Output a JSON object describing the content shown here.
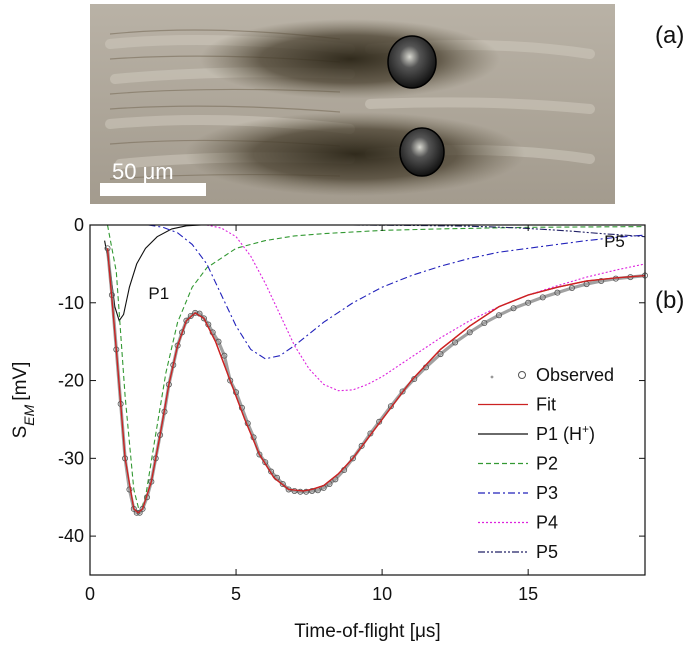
{
  "panels": {
    "top_label": "(a)",
    "bottom_label": "(b)"
  },
  "micrograph": {
    "scale_bar_label": "50 μm"
  },
  "chart_data": {
    "type": "line",
    "xlabel": "Time-of-flight [μs]",
    "ylabel_main": "S",
    "ylabel_sub": "EM",
    "ylabel_unit": "[mV]",
    "xlim": [
      0,
      19
    ],
    "ylim": [
      -45,
      0
    ],
    "xticks": [
      0,
      5,
      10,
      15
    ],
    "yticks": [
      0,
      -10,
      -20,
      -30,
      -40
    ],
    "ytick_labels": [
      "0",
      "-10",
      "-20",
      "-30",
      "-40"
    ],
    "annotations": [
      {
        "text": "P1",
        "x": 2.0,
        "y": -9.5
      },
      {
        "text": "P5",
        "x": 17.6,
        "y": -2.8
      }
    ],
    "legend_position": "right",
    "legend": [
      {
        "key": "observed",
        "label": "Observed",
        "color": "#666666"
      },
      {
        "key": "fit",
        "label": "Fit",
        "color": "#cc2222"
      },
      {
        "key": "p1",
        "label": "P1 (H",
        "sup": "+",
        "label_tail": ")",
        "color": "#111111"
      },
      {
        "key": "p2",
        "label": "P2",
        "color": "#339933"
      },
      {
        "key": "p3",
        "label": "P3",
        "color": "#2222bb"
      },
      {
        "key": "p4",
        "label": "P4",
        "color": "#dd22dd"
      },
      {
        "key": "p5",
        "label": "P5",
        "color": "#222266"
      }
    ],
    "series": [
      {
        "key": "fit",
        "name": "Fit",
        "color": "#cc2222",
        "style": "solid",
        "x": [
          0.6,
          0.9,
          1.2,
          1.5,
          1.65,
          1.8,
          2.1,
          2.4,
          2.7,
          3.0,
          3.3,
          3.6,
          3.9,
          4.3,
          4.8,
          5.3,
          5.8,
          6.3,
          6.8,
          7.3,
          7.6,
          8.0,
          8.5,
          9.0,
          10.0,
          11.0,
          12.0,
          13.0,
          14.0,
          15.0,
          16.0,
          17.0,
          18.0,
          19.0
        ],
        "y": [
          -3,
          -16,
          -30,
          -36.5,
          -37,
          -36.5,
          -33,
          -27,
          -20.5,
          -15.5,
          -12.3,
          -11.3,
          -12,
          -15,
          -20,
          -25,
          -29.5,
          -32.5,
          -34,
          -34.2,
          -34,
          -33.5,
          -32,
          -30,
          -25,
          -20,
          -16,
          -13,
          -10.5,
          -9,
          -8,
          -7.2,
          -6.8,
          -6.5
        ]
      },
      {
        "key": "p1",
        "name": "P1 (H+)",
        "color": "#111111",
        "style": "solid",
        "x": [
          0.5,
          0.7,
          0.85,
          1.0,
          1.15,
          1.35,
          1.6,
          1.9,
          2.3,
          2.8,
          3.3,
          3.8
        ],
        "y": [
          -2,
          -6,
          -10.5,
          -12.3,
          -11.5,
          -8,
          -5,
          -3,
          -1.5,
          -0.5,
          -0.1,
          0
        ]
      },
      {
        "key": "p2",
        "name": "P2",
        "color": "#339933",
        "style": "dash",
        "x": [
          0.6,
          0.9,
          1.2,
          1.5,
          1.7,
          1.9,
          2.2,
          2.6,
          3.0,
          3.5,
          4.0,
          5.0,
          6.0,
          7.0,
          8.0,
          10.0,
          12.0,
          15.0,
          19.0
        ],
        "y": [
          0,
          -6,
          -22,
          -34,
          -37,
          -35,
          -28,
          -19,
          -12.5,
          -8,
          -5.5,
          -3,
          -2,
          -1.4,
          -1.1,
          -0.7,
          -0.5,
          -0.3,
          -0.2
        ]
      },
      {
        "key": "p3",
        "name": "P3",
        "color": "#2222bb",
        "style": "dashdot",
        "x": [
          2.0,
          2.5,
          3.0,
          3.5,
          4.0,
          4.5,
          5.0,
          5.5,
          6.0,
          6.5,
          7.0,
          7.5,
          8.0,
          9.0,
          10.0,
          11.0,
          12.0,
          13.0,
          14.0,
          15.0,
          16.0,
          17.0,
          18.0,
          19.0
        ],
        "y": [
          0,
          -0.3,
          -1,
          -2.5,
          -5,
          -9,
          -13,
          -16,
          -17.2,
          -16.8,
          -15.5,
          -14,
          -12.5,
          -10,
          -8,
          -6.5,
          -5.3,
          -4.3,
          -3.5,
          -3,
          -2.5,
          -2,
          -1.6,
          -1.3
        ]
      },
      {
        "key": "p4",
        "name": "P4",
        "color": "#dd22dd",
        "style": "dot",
        "x": [
          4.0,
          4.5,
          5.0,
          5.5,
          6.0,
          6.5,
          7.0,
          7.5,
          8.0,
          8.5,
          9.0,
          9.5,
          10.0,
          11.0,
          12.0,
          13.0,
          14.0,
          15.0,
          16.0,
          17.0,
          18.0,
          19.0
        ],
        "y": [
          0,
          -0.4,
          -1.5,
          -4,
          -7.5,
          -11.5,
          -15.5,
          -18.5,
          -20.5,
          -21.3,
          -21.2,
          -20.5,
          -19.5,
          -17,
          -14.5,
          -12.3,
          -10.5,
          -9,
          -7.8,
          -6.7,
          -5.8,
          -5
        ]
      },
      {
        "key": "p5",
        "name": "P5",
        "color": "#222266",
        "style": "dashdotdot",
        "x": [
          9.0,
          11.0,
          13.0,
          14.5,
          15.5,
          16.5,
          17.5,
          18.5,
          19.0
        ],
        "y": [
          0,
          -0.05,
          -0.15,
          -0.35,
          -0.55,
          -0.8,
          -1.1,
          -1.35,
          -1.5
        ]
      }
    ],
    "observed": {
      "x": [
        0.6,
        0.75,
        0.9,
        1.05,
        1.2,
        1.35,
        1.5,
        1.6,
        1.7,
        1.8,
        1.95,
        2.1,
        2.25,
        2.4,
        2.55,
        2.7,
        2.85,
        3.0,
        3.15,
        3.3,
        3.45,
        3.6,
        3.75,
        3.9,
        4.05,
        4.2,
        4.4,
        4.6,
        4.8,
        5.0,
        5.2,
        5.4,
        5.6,
        5.8,
        6.0,
        6.2,
        6.4,
        6.6,
        6.8,
        7.0,
        7.2,
        7.4,
        7.6,
        7.8,
        8.0,
        8.2,
        8.4,
        8.7,
        9.0,
        9.3,
        9.6,
        9.9,
        10.3,
        10.7,
        11.1,
        11.5,
        12.0,
        12.5,
        13.0,
        13.5,
        14.0,
        14.5,
        15.0,
        15.5,
        16.0,
        16.5,
        17.0,
        17.5,
        18.0,
        18.5,
        19.0
      ],
      "y": [
        -3,
        -9,
        -16,
        -23,
        -30,
        -34,
        -36.5,
        -37,
        -37,
        -36.5,
        -35,
        -33,
        -30,
        -27,
        -24,
        -20.5,
        -18,
        -15.5,
        -13.8,
        -12.3,
        -11.7,
        -11.3,
        -11.4,
        -12,
        -12.8,
        -13.8,
        -15,
        -16.8,
        -20,
        -21.5,
        -23.5,
        -25.5,
        -27.3,
        -29.5,
        -30.5,
        -31.7,
        -32.5,
        -33.3,
        -34,
        -34.2,
        -34.3,
        -34.3,
        -34.2,
        -34.1,
        -33.8,
        -33.3,
        -32.7,
        -31.5,
        -30,
        -28.4,
        -26.8,
        -25.3,
        -23.3,
        -21.4,
        -19.8,
        -18.3,
        -16.6,
        -15.1,
        -13.8,
        -12.6,
        -11.6,
        -10.7,
        -10,
        -9.3,
        -8.7,
        -8.1,
        -7.6,
        -7.2,
        -6.9,
        -6.7,
        -6.5
      ]
    }
  }
}
